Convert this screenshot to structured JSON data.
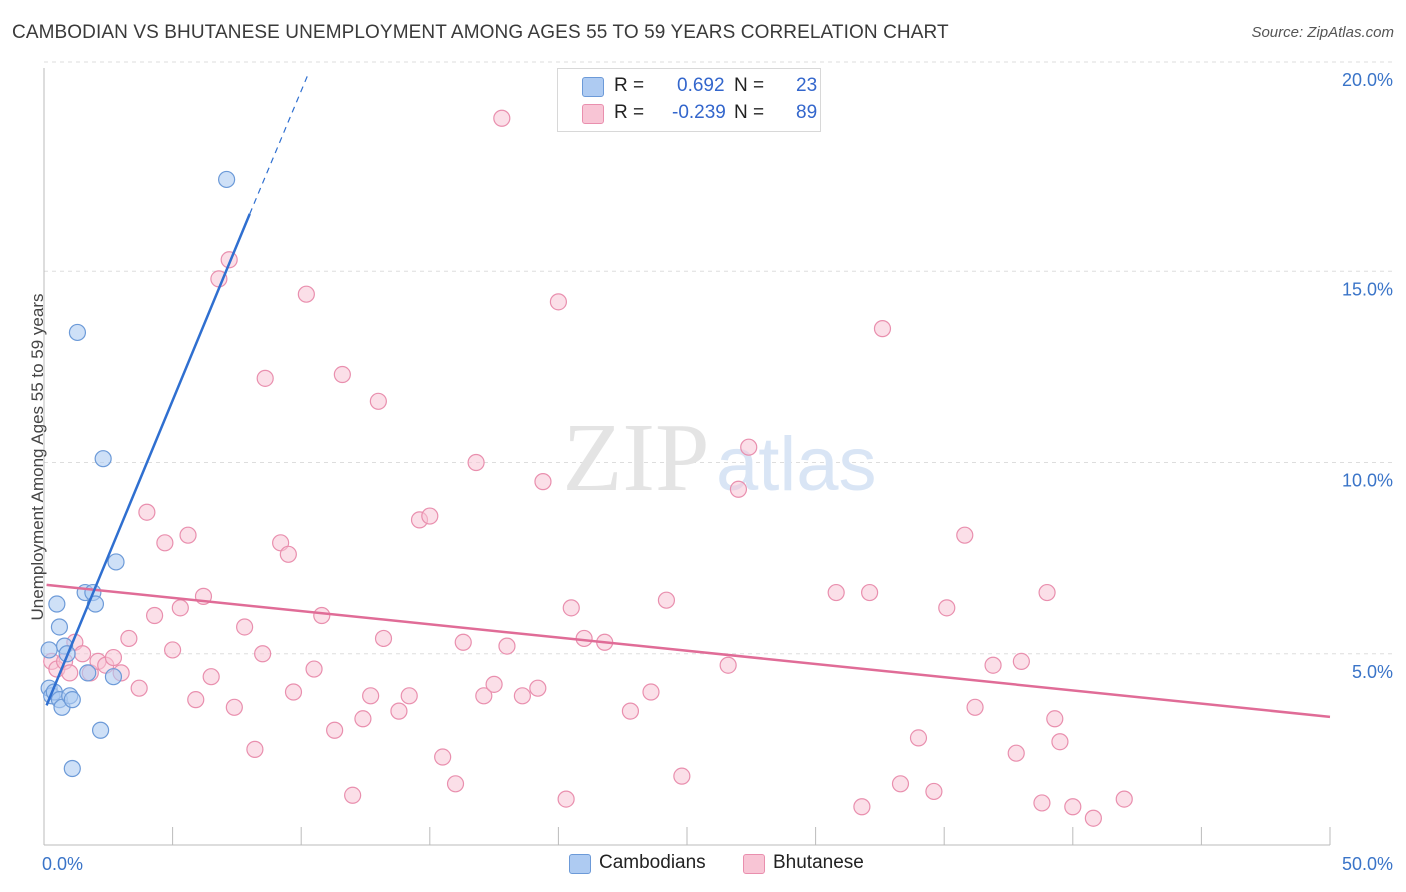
{
  "title": "CAMBODIAN VS BHUTANESE UNEMPLOYMENT AMONG AGES 55 TO 59 YEARS CORRELATION CHART",
  "source": "Source: ZipAtlas.com",
  "watermark": {
    "zip": "ZIP",
    "atlas": "atlas"
  },
  "legend": {
    "rows": [
      {
        "r_label": "R =",
        "r_value": "0.692",
        "n_label": "N =",
        "n_value": "23"
      },
      {
        "r_label": "R =",
        "r_value": "-0.239",
        "n_label": "N =",
        "n_value": "89"
      }
    ]
  },
  "bottom_legend": {
    "series1": "Cambodians",
    "series2": "Bhutanese"
  },
  "colors": {
    "cambodian_fill": "#aecbf2",
    "cambodian_stroke": "#6c9ad8",
    "cambodian_line": "#2f6fd0",
    "bhutanese_fill": "#f8c5d5",
    "bhutanese_stroke": "#e98fae",
    "bhutanese_line": "#e06c97",
    "tick_label": "#3a74c8",
    "grid": "#dddddd"
  },
  "chart_data": {
    "type": "scatter",
    "xlabel": "",
    "ylabel": "Unemployment Among Ages 55 to 59 years",
    "xlim": [
      0,
      50
    ],
    "ylim": [
      0,
      20
    ],
    "x_tick_labels": [
      "0.0%",
      "50.0%"
    ],
    "y_ticks": [
      5,
      10,
      15,
      20
    ],
    "y_tick_labels": [
      "5.0%",
      "10.0%",
      "15.0%",
      "20.0%"
    ],
    "series": [
      {
        "name": "Cambodians",
        "points": [
          [
            0.2,
            4.1
          ],
          [
            0.3,
            3.9
          ],
          [
            0.4,
            4.0
          ],
          [
            0.5,
            6.3
          ],
          [
            0.6,
            5.7
          ],
          [
            0.6,
            3.8
          ],
          [
            0.7,
            3.6
          ],
          [
            0.8,
            5.2
          ],
          [
            0.9,
            5.0
          ],
          [
            1.0,
            3.9
          ],
          [
            1.1,
            3.8
          ],
          [
            1.1,
            2.0
          ],
          [
            1.3,
            13.4
          ],
          [
            1.6,
            6.6
          ],
          [
            1.7,
            4.5
          ],
          [
            1.9,
            6.6
          ],
          [
            2.0,
            6.3
          ],
          [
            2.3,
            10.1
          ],
          [
            2.2,
            3.0
          ],
          [
            2.7,
            4.4
          ],
          [
            2.8,
            7.4
          ],
          [
            0.2,
            5.1
          ],
          [
            7.1,
            17.4
          ]
        ],
        "trend": {
          "x1": 0.1,
          "y1": 3.65,
          "x2": 8.0,
          "y2": 16.5,
          "dash_x2": 10.3,
          "dash_y2": 20.2
        }
      },
      {
        "name": "Bhutanese",
        "points": [
          [
            0.3,
            4.8
          ],
          [
            0.5,
            4.6
          ],
          [
            0.8,
            4.8
          ],
          [
            1.0,
            4.5
          ],
          [
            1.2,
            5.3
          ],
          [
            1.5,
            5.0
          ],
          [
            1.8,
            4.5
          ],
          [
            2.1,
            4.8
          ],
          [
            2.4,
            4.7
          ],
          [
            2.7,
            4.9
          ],
          [
            3.0,
            4.5
          ],
          [
            3.3,
            5.4
          ],
          [
            3.7,
            4.1
          ],
          [
            4.0,
            8.7
          ],
          [
            4.3,
            6.0
          ],
          [
            4.7,
            7.9
          ],
          [
            5.0,
            5.1
          ],
          [
            5.3,
            6.2
          ],
          [
            5.6,
            8.1
          ],
          [
            5.9,
            3.8
          ],
          [
            6.2,
            6.5
          ],
          [
            6.5,
            4.4
          ],
          [
            6.8,
            14.8
          ],
          [
            7.2,
            15.3
          ],
          [
            7.4,
            3.6
          ],
          [
            7.8,
            5.7
          ],
          [
            8.2,
            2.5
          ],
          [
            8.6,
            12.2
          ],
          [
            8.5,
            5.0
          ],
          [
            9.2,
            7.9
          ],
          [
            9.5,
            7.6
          ],
          [
            9.7,
            4.0
          ],
          [
            10.2,
            14.4
          ],
          [
            10.5,
            4.6
          ],
          [
            10.8,
            6.0
          ],
          [
            11.3,
            3.0
          ],
          [
            11.6,
            12.3
          ],
          [
            12.0,
            1.3
          ],
          [
            12.4,
            3.3
          ],
          [
            12.7,
            3.9
          ],
          [
            13.0,
            11.6
          ],
          [
            13.2,
            5.4
          ],
          [
            13.8,
            3.5
          ],
          [
            14.2,
            3.9
          ],
          [
            14.6,
            8.5
          ],
          [
            15.0,
            8.6
          ],
          [
            15.5,
            2.3
          ],
          [
            16.0,
            1.6
          ],
          [
            16.3,
            5.3
          ],
          [
            16.8,
            10.0
          ],
          [
            17.1,
            3.9
          ],
          [
            17.5,
            4.2
          ],
          [
            17.8,
            19.0
          ],
          [
            18.0,
            5.2
          ],
          [
            18.6,
            3.9
          ],
          [
            19.2,
            4.1
          ],
          [
            19.4,
            9.5
          ],
          [
            20.0,
            14.2
          ],
          [
            20.3,
            1.2
          ],
          [
            20.5,
            6.2
          ],
          [
            21.0,
            5.4
          ],
          [
            21.8,
            5.3
          ],
          [
            22.8,
            3.5
          ],
          [
            23.6,
            4.0
          ],
          [
            24.2,
            6.4
          ],
          [
            24.8,
            1.8
          ],
          [
            26.6,
            4.7
          ],
          [
            27.0,
            9.3
          ],
          [
            27.4,
            10.4
          ],
          [
            30.8,
            6.6
          ],
          [
            31.8,
            1.0
          ],
          [
            32.1,
            6.6
          ],
          [
            32.6,
            13.5
          ],
          [
            33.3,
            1.6
          ],
          [
            34.0,
            2.8
          ],
          [
            34.6,
            1.4
          ],
          [
            35.1,
            6.2
          ],
          [
            35.8,
            8.1
          ],
          [
            36.2,
            3.6
          ],
          [
            36.9,
            4.7
          ],
          [
            37.8,
            2.4
          ],
          [
            38.0,
            4.8
          ],
          [
            38.8,
            1.1
          ],
          [
            39.0,
            6.6
          ],
          [
            39.3,
            3.3
          ],
          [
            39.5,
            2.7
          ],
          [
            40.0,
            1.0
          ],
          [
            40.8,
            0.7
          ],
          [
            42.0,
            1.2
          ]
        ],
        "trend": {
          "x1": 0.1,
          "y1": 6.8,
          "x2": 50.0,
          "y2": 3.35
        }
      }
    ]
  }
}
